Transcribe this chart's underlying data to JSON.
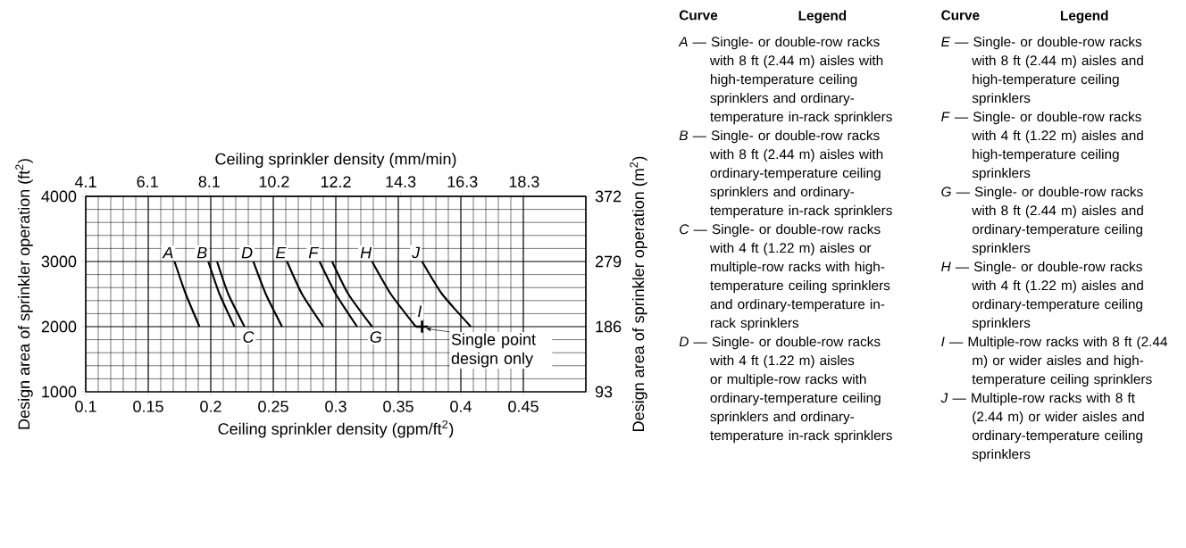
{
  "chart_data": {
    "type": "line",
    "xlabel": "Ceiling sprinkler density (gpm/ft$^{2}$)",
    "ylabel": "Design area of sprinkler operation (ft$^{2}$)",
    "x2label": "Ceiling sprinkler density (mm/min)",
    "y2label": "Design area of sprinkler operation (m$^{2}$)",
    "xlim": [
      0.1,
      0.5
    ],
    "xticks": [
      0.1,
      0.15,
      0.2,
      0.25,
      0.3,
      0.35,
      0.4,
      0.45
    ],
    "ylim": [
      1000,
      4000
    ],
    "yticks": [
      1000,
      2000,
      3000,
      4000
    ],
    "x2lim": [
      4.1,
      20.3
    ],
    "x2ticks": [
      4.1,
      6.1,
      8.1,
      10.2,
      12.2,
      14.3,
      16.3,
      18.3
    ],
    "y2lim": [
      93,
      372
    ],
    "y2ticks": [
      93,
      186,
      279,
      372
    ],
    "grid": true,
    "marker": "none",
    "line_style": "solid",
    "series": [
      {
        "name": "A",
        "color": "#000000",
        "x": [
          0.171,
          0.18,
          0.191
        ],
        "values": [
          3000,
          2500,
          2000
        ]
      },
      {
        "name": "B",
        "color": "#000000",
        "x": [
          0.198,
          0.207,
          0.219
        ],
        "values": [
          3000,
          2500,
          2000
        ]
      },
      {
        "name": "C",
        "color": "#000000",
        "x": [
          0.205,
          0.214,
          0.227
        ],
        "values": [
          3000,
          2500,
          2000
        ]
      },
      {
        "name": "D",
        "color": "#000000",
        "x": [
          0.234,
          0.244,
          0.257
        ],
        "values": [
          3000,
          2500,
          2000
        ]
      },
      {
        "name": "E",
        "color": "#000000",
        "x": [
          0.261,
          0.273,
          0.29
        ],
        "values": [
          3000,
          2500,
          2000
        ]
      },
      {
        "name": "F",
        "color": "#000000",
        "x": [
          0.287,
          0.3,
          0.317
        ],
        "values": [
          3000,
          2500,
          2000
        ]
      },
      {
        "name": "G",
        "color": "#000000",
        "x": [
          0.297,
          0.31,
          0.329
        ],
        "values": [
          3000,
          2500,
          2000
        ]
      },
      {
        "name": "H",
        "color": "#000000",
        "x": [
          0.329,
          0.344,
          0.364
        ],
        "values": [
          3000,
          2500,
          2000
        ]
      },
      {
        "name": "I",
        "color": "#000000",
        "type": "scatter",
        "marker": "cross",
        "x": [
          0.369
        ],
        "values": [
          2000
        ]
      },
      {
        "name": "J",
        "color": "#000000",
        "x": [
          0.369,
          0.385,
          0.408
        ],
        "values": [
          3000,
          2500,
          2000
        ]
      }
    ],
    "annotations": [
      "Curve",
      "Legend",
      "Curve",
      "Legend",
      "*A* — Single- or double-row racks with 8 ft (2.44 m) aisles with high-temperature ceiling sprinklers and ordinary-temperature in-rack sprinklers",
      "*B* — Single- or double-row racks with 8 ft (2.44 m) aisles with ordinary-temperature ceiling sprinklers and ordinary-temperature in-rack sprinklers",
      "*C* — Single- or double-row racks with 4 ft (1.22 m) aisles or multiple-row racks with high-temperature ceiling sprinklers and ordinary-temperature in-rack sprinklers",
      "*D* — Single- or double-row racks with 4 ft (1.22 m) aisles or multiple-row racks with ordinary-temperature ceiling sprinklers and ordinary-temperature in-rack sprinklers",
      "*E* — Single- or double-row racks with 8 ft (2.44 m) aisles and high-temperature ceiling sprinklers",
      "*F* — Single- or double-row racks with 4 ft (1.22 m) aisles and high-temperature ceiling sprinklers",
      "*G* — Single- or double-row racks with 8 ft (2.44 m) aisles and ordinary-temperature ceiling sprinklers",
      "*H* — Single- or double-row racks with 4 ft (1.22 m) aisles and ordinary-temperature ceiling sprinklers",
      "*I* — Multiple-row racks with 8 ft (2.44 m) or wider aisles and high-temperature ceiling sprinklers",
      "*J* — Multiple-row racks with 8 ft (2.44 m) or wider aisles and ordinary-temperature ceiling sprinklers",
      {
        "text": "Single point design only",
        "x": 0.369,
        "y": 2000
      }
    ]
  }
}
